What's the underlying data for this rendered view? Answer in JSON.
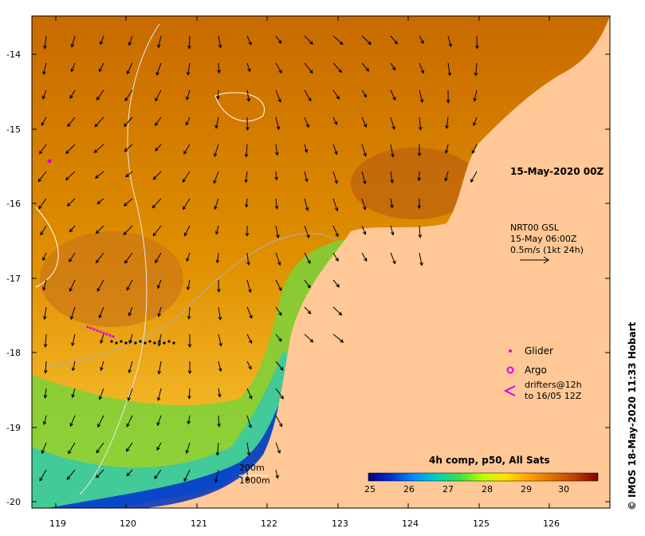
{
  "map": {
    "lon_ticks": [
      "119",
      "120",
      "121",
      "122",
      "123",
      "124",
      "125",
      "126"
    ],
    "lat_ticks": [
      "-14",
      "-15",
      "-16",
      "-17",
      "-18",
      "-19",
      "-20"
    ],
    "date_label": "15-May-2020 00Z",
    "current_label": {
      "line1": "NRT00 GSL",
      "line2": "15-May 06:00Z",
      "line3": "0.5m/s (1kt 24h)"
    },
    "legend": {
      "glider": "Glider",
      "argo": "Argo",
      "drifters_line1": "drifters@12h",
      "drifters_line2": "to 16/05 12Z",
      "glider_color": "#e000e0",
      "argo_color": "#e000e0"
    },
    "depth_legend": {
      "a": "200m",
      "b": "1000m"
    },
    "colorbar": {
      "title": "4h comp, p50, All Sats",
      "ticks": [
        "25",
        "26",
        "27",
        "28",
        "29",
        "30"
      ],
      "colors": [
        "#000080",
        "#0030d0",
        "#0090ff",
        "#00d0c0",
        "#40e040",
        "#c0ff00",
        "#ffe000",
        "#ffa000",
        "#e07000",
        "#c04000",
        "#800000"
      ]
    },
    "credit": "© IMOS 18-May-2020 11:33 Hobart",
    "land_color": "#ffc896"
  }
}
